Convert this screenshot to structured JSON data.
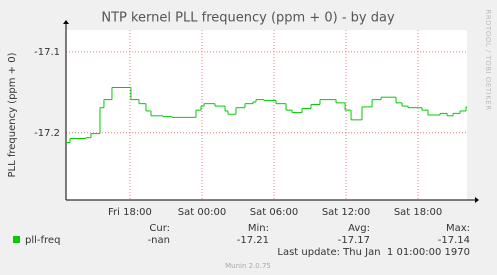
{
  "chart_data": {
    "type": "line",
    "title": "NTP kernel PLL frequency (ppm + 0) - by day",
    "ylabel": "PLL frequency (ppm + 0)",
    "xlim": [
      12.67,
      46.08
    ],
    "xticks": [
      {
        "value": 18,
        "label": "Fri 18:00"
      },
      {
        "value": 24,
        "label": "Sat 00:00"
      },
      {
        "value": 30,
        "label": "Sat 06:00"
      },
      {
        "value": 36,
        "label": "Sat 12:00"
      },
      {
        "value": 42,
        "label": "Sat 18:00"
      }
    ],
    "ylim": [
      -17.283,
      -17.073
    ],
    "yticks": [
      -17.1,
      -17.2
    ],
    "grid": true,
    "step": true,
    "x": [
      12.67,
      13,
      14.33,
      14.75,
      15.5,
      15.83,
      16.5,
      18.08,
      18.75,
      19.33,
      19.75,
      20.75,
      21.5,
      23.5,
      23.92,
      24.17,
      25.08,
      25.92,
      26.17,
      26.83,
      27.58,
      28.25,
      28.5,
      29.17,
      30.17,
      31,
      31.5,
      32.33,
      33.08,
      33.83,
      35.17,
      35.92,
      36.42,
      37.33,
      38.17,
      38.92,
      40.17,
      40.67,
      41.17,
      42.33,
      42.83,
      43.83,
      44.42,
      44.92,
      45.5,
      46
    ],
    "series": [
      {
        "name": "pll-freq",
        "color": "#00cc00",
        "values": [
          -17.212,
          -17.207,
          -17.206,
          -17.201,
          -17.169,
          -17.159,
          -17.144,
          -17.159,
          -17.164,
          -17.173,
          -17.179,
          -17.18,
          -17.181,
          -17.172,
          -17.167,
          -17.164,
          -17.167,
          -17.173,
          -17.177,
          -17.169,
          -17.164,
          -17.162,
          -17.159,
          -17.16,
          -17.164,
          -17.172,
          -17.175,
          -17.17,
          -17.165,
          -17.159,
          -17.163,
          -17.172,
          -17.184,
          -17.168,
          -17.159,
          -17.156,
          -17.163,
          -17.167,
          -17.169,
          -17.172,
          -17.178,
          -17.176,
          -17.179,
          -17.176,
          -17.173,
          -17.168
        ]
      }
    ],
    "stats": {
      "labels": [
        "Cur:",
        "Min:",
        "Avg:",
        "Max:"
      ],
      "values": [
        "-nan",
        "-17.21",
        "-17.17",
        "-17.14"
      ]
    },
    "last_update": "Last update: Thu Jan  1 01:00:00 1970",
    "footer": "Munin 2.0.75",
    "watermark": "RRDTOOL / TOBI OETIKER"
  }
}
